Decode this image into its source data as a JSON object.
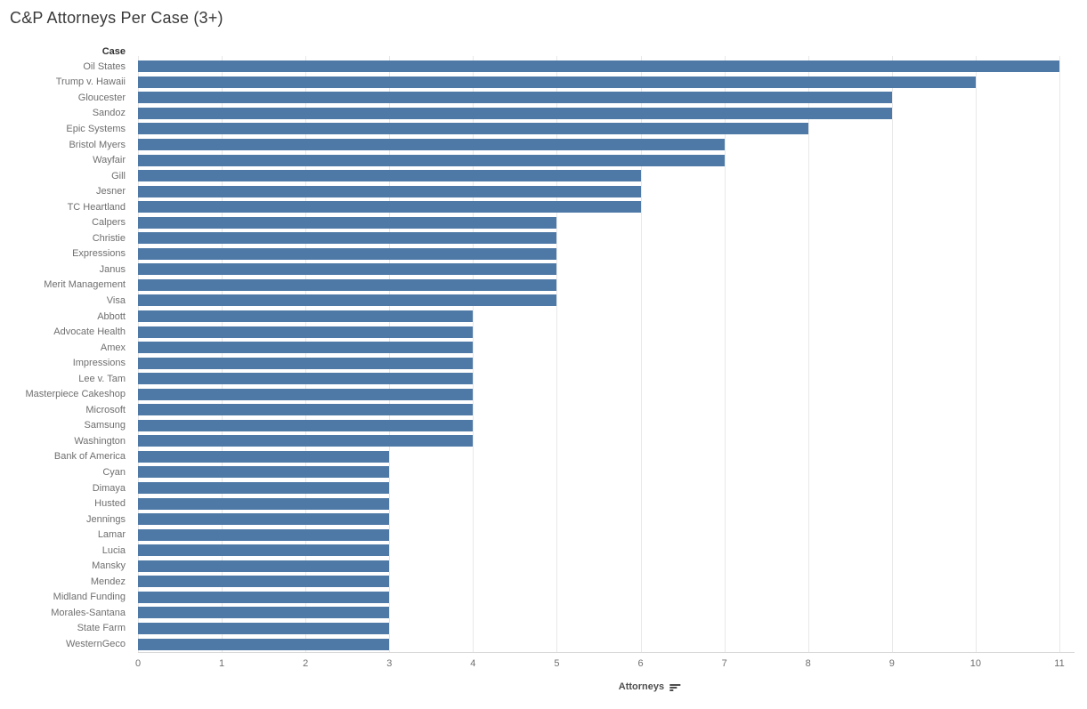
{
  "chart_data": {
    "type": "bar",
    "orientation": "horizontal",
    "title": "C&P Attorneys Per Case (3+)",
    "row_header": "Case",
    "xlabel": "Attorneys",
    "categories": [
      "Oil States",
      "Trump v. Hawaii",
      "Gloucester",
      "Sandoz",
      "Epic Systems",
      "Bristol Myers",
      "Wayfair",
      "Gill",
      "Jesner",
      "TC Heartland",
      "Calpers",
      "Christie",
      "Expressions",
      "Janus",
      "Merit Management",
      "Visa",
      "Abbott",
      "Advocate Health",
      "Amex",
      "Impressions",
      "Lee v. Tam",
      "Masterpiece Cakeshop",
      "Microsoft",
      "Samsung",
      "Washington",
      "Bank of America",
      "Cyan",
      "Dimaya",
      "Husted",
      "Jennings",
      "Lamar",
      "Lucia",
      "Mansky",
      "Mendez",
      "Midland Funding",
      "Morales-Santana",
      "State Farm",
      "WesternGeco"
    ],
    "values": [
      11,
      10,
      9,
      9,
      8,
      7,
      7,
      6,
      6,
      6,
      5,
      5,
      5,
      5,
      5,
      5,
      4,
      4,
      4,
      4,
      4,
      4,
      4,
      4,
      4,
      3,
      3,
      3,
      3,
      3,
      3,
      3,
      3,
      3,
      3,
      3,
      3,
      3
    ],
    "xlim": [
      0,
      11
    ],
    "xticks": [
      0,
      1,
      2,
      3,
      4,
      5,
      6,
      7,
      8,
      9,
      10,
      11
    ],
    "bar_color": "#4e79a7",
    "grid": true,
    "legend": "none",
    "sort": "descending",
    "sort_icon": "sort-descending-icon"
  }
}
